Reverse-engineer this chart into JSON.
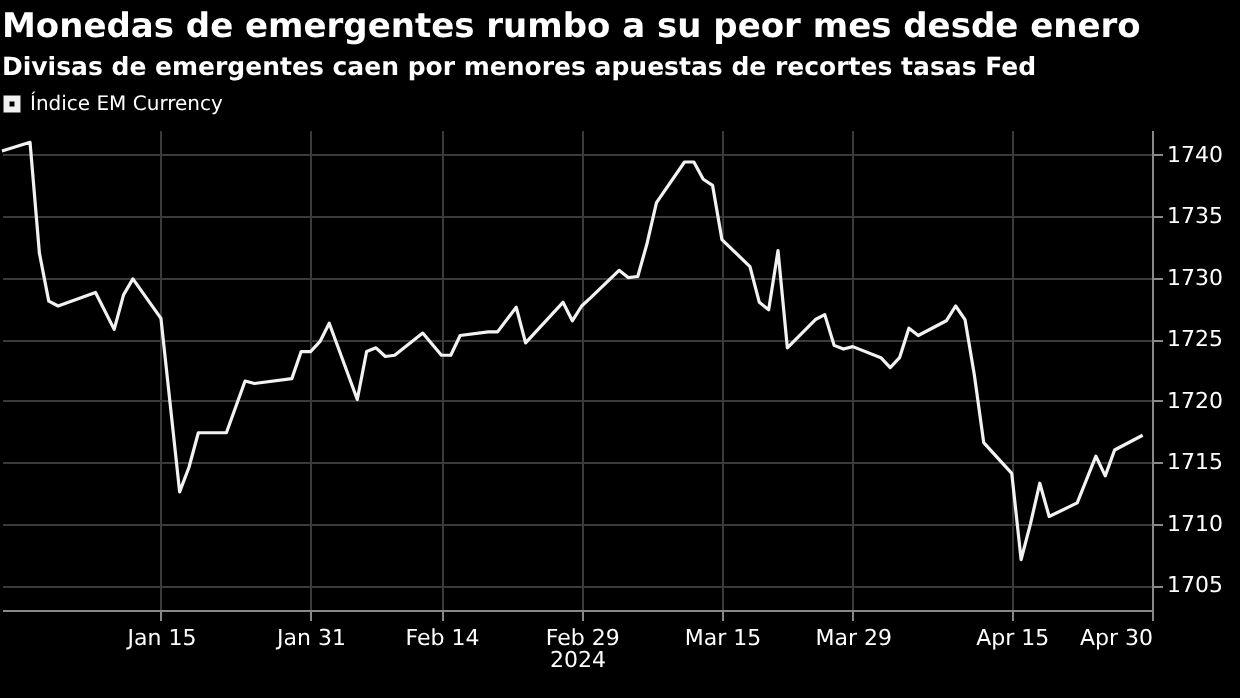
{
  "chart_data": {
    "type": "line",
    "title": "Monedas de emergentes rumbo a su peor mes desde enero",
    "subtitle": "Divisas de emergentes caen por menores apuestas de recortes tasas Fed",
    "xlabel": "2024",
    "x": [
      "2023-12-29",
      "2024-01-01",
      "2024-01-02",
      "2024-01-03",
      "2024-01-04",
      "2024-01-08",
      "2024-01-10",
      "2024-01-11",
      "2024-01-12",
      "2024-01-15",
      "2024-01-17",
      "2024-01-18",
      "2024-01-19",
      "2024-01-22",
      "2024-01-24",
      "2024-01-25",
      "2024-01-29",
      "2024-01-30",
      "2024-01-31",
      "2024-02-01",
      "2024-02-02",
      "2024-02-05",
      "2024-02-06",
      "2024-02-07",
      "2024-02-08",
      "2024-02-09",
      "2024-02-12",
      "2024-02-14",
      "2024-02-15",
      "2024-02-16",
      "2024-02-19",
      "2024-02-20",
      "2024-02-22",
      "2024-02-23",
      "2024-02-27",
      "2024-02-28",
      "2024-02-29",
      "2024-03-01",
      "2024-03-04",
      "2024-03-05",
      "2024-03-06",
      "2024-03-07",
      "2024-03-08",
      "2024-03-11",
      "2024-03-12",
      "2024-03-13",
      "2024-03-14",
      "2024-03-15",
      "2024-03-18",
      "2024-03-19",
      "2024-03-20",
      "2024-03-21",
      "2024-03-22",
      "2024-03-25",
      "2024-03-26",
      "2024-03-27",
      "2024-03-28",
      "2024-03-29",
      "2024-04-01",
      "2024-04-02",
      "2024-04-03",
      "2024-04-04",
      "2024-04-05",
      "2024-04-08",
      "2024-04-09",
      "2024-04-10",
      "2024-04-11",
      "2024-04-12",
      "2024-04-15",
      "2024-04-16",
      "2024-04-17",
      "2024-04-18",
      "2024-04-19",
      "2024-04-22",
      "2024-04-24",
      "2024-04-25",
      "2024-04-26",
      "2024-04-29"
    ],
    "series": [
      {
        "name": "Índice EM Currency",
        "color": "#f2f2f2",
        "values": [
          1740.3,
          1741.0,
          1732.0,
          1728.1,
          1727.7,
          1728.8,
          1725.8,
          1728.6,
          1729.9,
          1726.7,
          1712.6,
          1714.6,
          1717.4,
          1717.4,
          1721.6,
          1721.4,
          1721.8,
          1724.0,
          1724.0,
          1724.8,
          1726.3,
          1720.1,
          1724.0,
          1724.3,
          1723.6,
          1723.7,
          1725.5,
          1723.7,
          1723.7,
          1725.3,
          1725.6,
          1725.6,
          1727.6,
          1724.7,
          1728.0,
          1726.5,
          1727.7,
          1728.4,
          1730.6,
          1730.0,
          1730.1,
          1732.8,
          1736.1,
          1739.4,
          1739.4,
          1738.0,
          1737.5,
          1733.1,
          1730.9,
          1728.0,
          1727.4,
          1732.2,
          1724.3,
          1726.6,
          1727.0,
          1724.5,
          1724.2,
          1724.4,
          1723.5,
          1722.7,
          1723.5,
          1725.9,
          1725.3,
          1726.5,
          1727.7,
          1726.6,
          1722.1,
          1716.6,
          1714.1,
          1707.1,
          1710.0,
          1713.3,
          1710.6,
          1711.7,
          1715.5,
          1713.9,
          1716.0,
          1717.2
        ]
      }
    ],
    "xlim": [
      "2023-12-29",
      "2024-04-30"
    ],
    "xticks": [
      {
        "value": "2024-01-15",
        "label": "Jan 15"
      },
      {
        "value": "2024-01-31",
        "label": "Jan 31"
      },
      {
        "value": "2024-02-14",
        "label": "Feb 14"
      },
      {
        "value": "2024-02-29",
        "label": "Feb 29"
      },
      {
        "value": "2024-03-15",
        "label": "Mar 15"
      },
      {
        "value": "2024-03-29",
        "label": "Mar 29"
      },
      {
        "value": "2024-04-15",
        "label": "Apr 15"
      },
      {
        "value": "2024-04-30",
        "label": "Apr 30"
      }
    ],
    "ylim": [
      1703,
      1742
    ],
    "yticks": [
      1705,
      1710,
      1715,
      1720,
      1725,
      1730,
      1735,
      1740
    ],
    "grid": true,
    "legend": "top left"
  }
}
